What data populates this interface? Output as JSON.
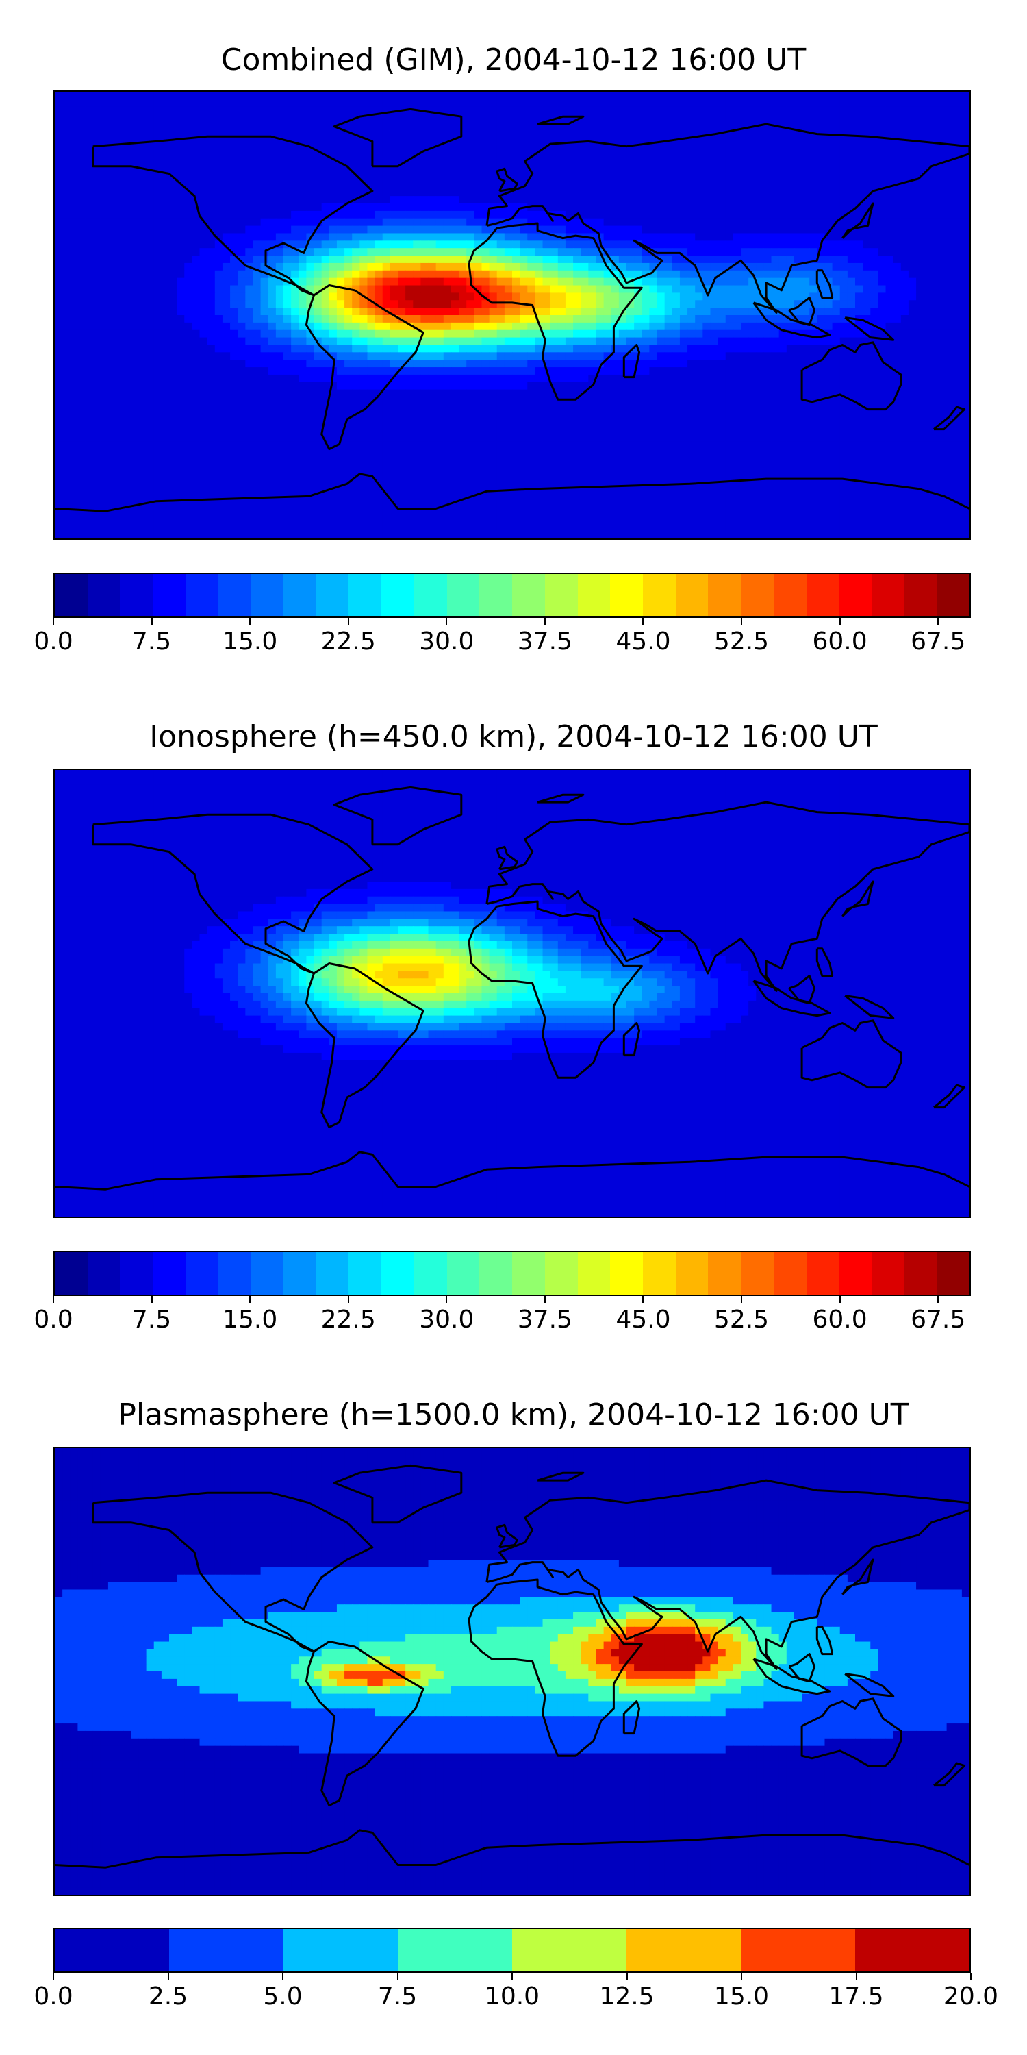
{
  "panels": [
    {
      "title": "Combined (GIM), 2004-10-12 16:00 UT",
      "colorbar": {
        "min": 0.0,
        "max": 70.0,
        "levels": 28,
        "tick_labels": [
          "0.0",
          "7.5",
          "15.0",
          "22.5",
          "30.0",
          "37.5",
          "45.0",
          "52.5",
          "60.0",
          "67.5"
        ],
        "tick_values": [
          0.0,
          7.5,
          15.0,
          22.5,
          30.0,
          37.5,
          45.0,
          52.5,
          60.0,
          67.5
        ]
      },
      "field": {
        "background": 6,
        "blobs": [
          {
            "lon": -35,
            "lat": 8,
            "rx": 95,
            "ry": 38,
            "value": 66,
            "falloff": 1.6
          },
          {
            "lon": 35,
            "lat": 5,
            "rx": 70,
            "ry": 28,
            "value": 30,
            "falloff": 1.3
          },
          {
            "lon": 110,
            "lat": 10,
            "rx": 55,
            "ry": 25,
            "value": 18,
            "falloff": 1.2
          }
        ]
      }
    },
    {
      "title": "Ionosphere  (h=450.0 km), 2004-10-12 16:00 UT",
      "colorbar": {
        "min": 0.0,
        "max": 70.0,
        "levels": 28,
        "tick_labels": [
          "0.0",
          "7.5",
          "15.0",
          "22.5",
          "30.0",
          "37.5",
          "45.0",
          "52.5",
          "60.0",
          "67.5"
        ],
        "tick_values": [
          0.0,
          7.5,
          15.0,
          22.5,
          30.0,
          37.5,
          45.0,
          52.5,
          60.0,
          67.5
        ]
      },
      "field": {
        "background": 6,
        "blobs": [
          {
            "lon": -40,
            "lat": 8,
            "rx": 90,
            "ry": 36,
            "value": 48,
            "falloff": 1.5
          },
          {
            "lon": 40,
            "lat": 0,
            "rx": 60,
            "ry": 24,
            "value": 20,
            "falloff": 1.2
          }
        ]
      }
    },
    {
      "title": "Plasmasphere (h=1500.0 km), 2004-10-12 16:00 UT",
      "colorbar": {
        "min": 0.0,
        "max": 20.0,
        "levels": 8,
        "tick_labels": [
          "0.0",
          "2.5",
          "5.0",
          "7.5",
          "10.0",
          "12.5",
          "15.0",
          "17.5",
          "20.0"
        ],
        "tick_values": [
          0.0,
          2.5,
          5.0,
          7.5,
          10.0,
          12.5,
          15.0,
          17.5,
          20.0
        ]
      },
      "field": {
        "background": 1.5,
        "blobs": [
          {
            "lon": 0,
            "lat": 5,
            "rx": 200,
            "ry": 32,
            "value": 8.5,
            "falloff": 0.6
          },
          {
            "lon": 60,
            "lat": 8,
            "rx": 55,
            "ry": 25,
            "value": 15.5,
            "falloff": 1.4
          },
          {
            "lon": -55,
            "lat": -2,
            "rx": 40,
            "ry": 10,
            "value": 11.5,
            "falloff": 1.6
          }
        ]
      }
    }
  ],
  "colors": {
    "jet": [
      "#00007f",
      "#0000c8",
      "#0000ff",
      "#0040ff",
      "#0080ff",
      "#00c0ff",
      "#19ffe5",
      "#5cffa0",
      "#a0ff5c",
      "#e5ff19",
      "#ffc000",
      "#ff8000",
      "#ff4000",
      "#e00000",
      "#7f0000"
    ],
    "coast": "#000000"
  }
}
